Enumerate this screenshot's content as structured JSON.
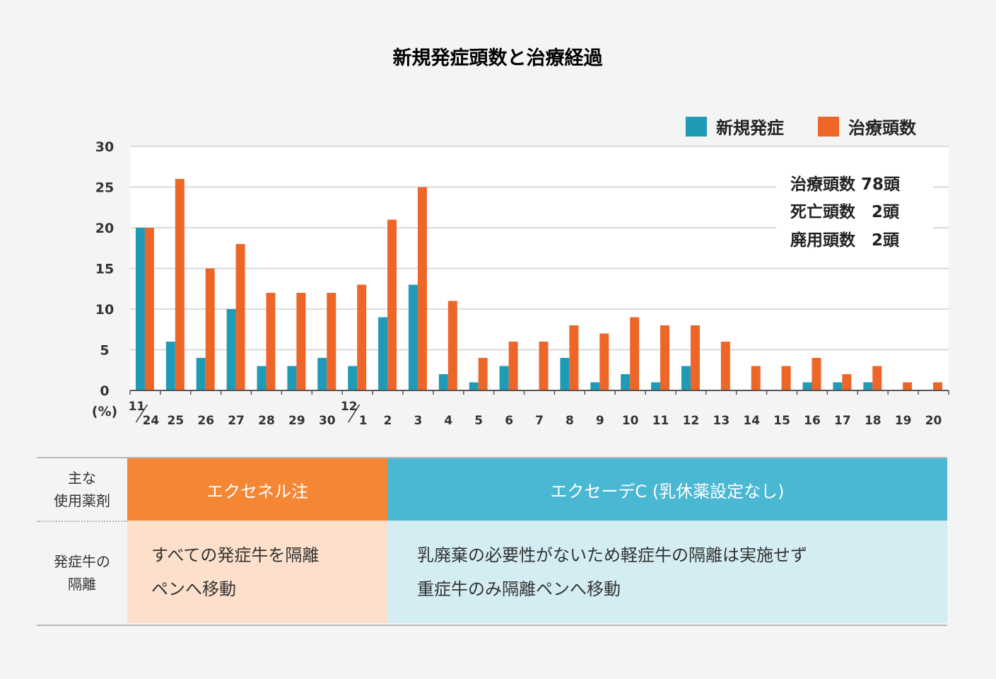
{
  "chart_data": {
    "type": "bar",
    "title": "新規発症頭数と治療経過",
    "categories": [
      "11/24",
      "25",
      "26",
      "27",
      "28",
      "29",
      "30",
      "12/1",
      "2",
      "3",
      "4",
      "5",
      "6",
      "7",
      "8",
      "9",
      "10",
      "11",
      "12",
      "13",
      "14",
      "15",
      "16",
      "17",
      "18",
      "19",
      "20"
    ],
    "category_labels": [
      {
        "top": "11",
        "bottom": "24"
      },
      {
        "bottom": "25"
      },
      {
        "bottom": "26"
      },
      {
        "bottom": "27"
      },
      {
        "bottom": "28"
      },
      {
        "bottom": "29"
      },
      {
        "bottom": "30"
      },
      {
        "top": "12",
        "bottom": "1"
      },
      {
        "bottom": "2"
      },
      {
        "bottom": "3"
      },
      {
        "bottom": "4"
      },
      {
        "bottom": "5"
      },
      {
        "bottom": "6"
      },
      {
        "bottom": "7"
      },
      {
        "bottom": "8"
      },
      {
        "bottom": "9"
      },
      {
        "bottom": "10"
      },
      {
        "bottom": "11"
      },
      {
        "bottom": "12"
      },
      {
        "bottom": "13"
      },
      {
        "bottom": "14"
      },
      {
        "bottom": "15"
      },
      {
        "bottom": "16"
      },
      {
        "bottom": "17"
      },
      {
        "bottom": "18"
      },
      {
        "bottom": "19"
      },
      {
        "bottom": "20"
      }
    ],
    "series": [
      {
        "name": "新規発症",
        "color": "#1f9bb8",
        "values": [
          20,
          6,
          4,
          10,
          3,
          3,
          4,
          3,
          9,
          13,
          2,
          1,
          3,
          0,
          4,
          1,
          2,
          1,
          3,
          0,
          0,
          0,
          1,
          1,
          1,
          0,
          0
        ]
      },
      {
        "name": "治療頭数",
        "color": "#ed6628",
        "values": [
          20,
          26,
          15,
          18,
          12,
          12,
          12,
          13,
          21,
          25,
          11,
          4,
          6,
          6,
          8,
          7,
          9,
          8,
          8,
          6,
          3,
          3,
          4,
          2,
          3,
          1,
          1
        ]
      }
    ],
    "ylim": [
      0,
      30
    ],
    "yticks": [
      0,
      5,
      10,
      15,
      20,
      25,
      30
    ],
    "ylabel": "(%)",
    "legend_position": "top-right",
    "grid": true,
    "annotations": [
      "治療頭数 78頭",
      "死亡頭数　2頭",
      "廃用頭数　2頭"
    ]
  },
  "table": {
    "row1_header": [
      "主な",
      "使用薬剤"
    ],
    "row2_header": [
      "発症牛の",
      "隔離"
    ],
    "drug_left": "エクセネル注",
    "drug_right": "エクセーデC (乳休薬設定なし)",
    "desc_left": [
      "すべての発症牛を隔離",
      "ペンへ移動"
    ],
    "desc_right": [
      "乳廃棄の必要性がないため軽症牛の隔離は実施せず",
      "重症牛のみ隔離ペンへ移動"
    ],
    "colors": {
      "drug_left_bg": "#f58634",
      "drug_right_bg": "#4ab7d3",
      "desc_left_bg": "#fde0cb",
      "desc_right_bg": "#d3edf3"
    }
  }
}
